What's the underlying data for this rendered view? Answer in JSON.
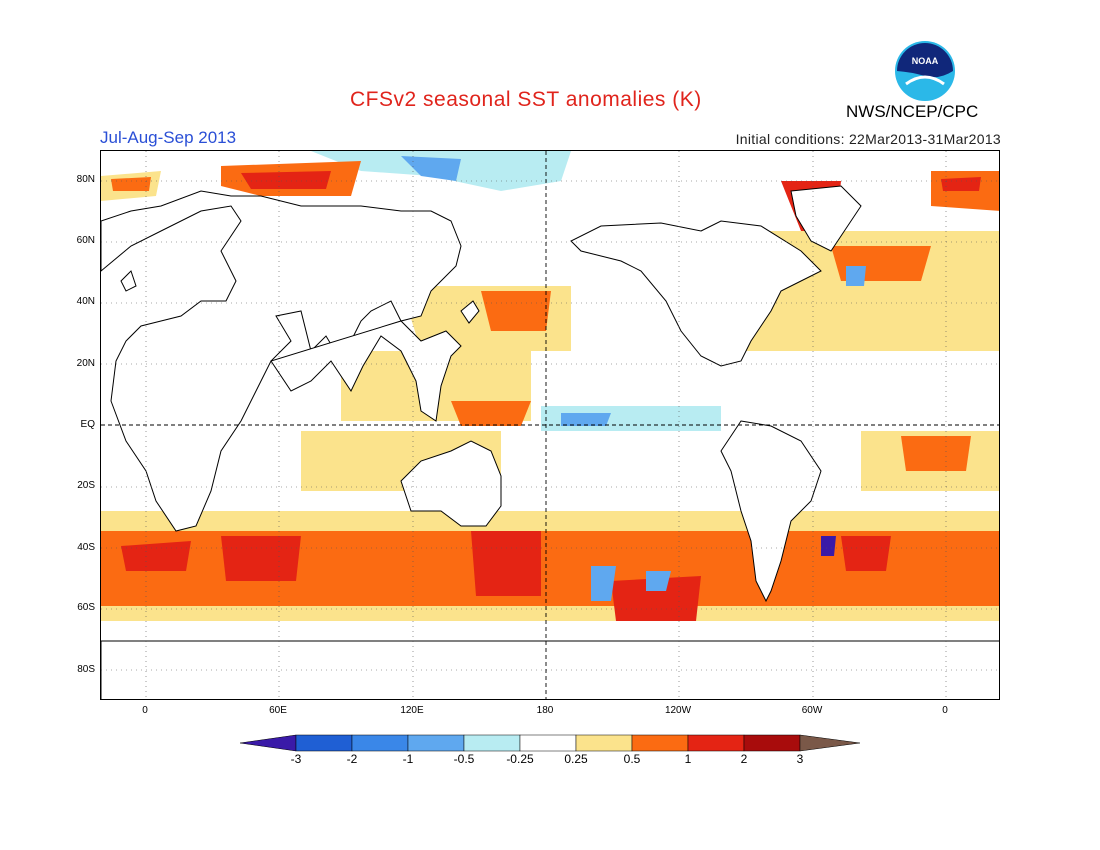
{
  "header": {
    "title": "CFSv2 seasonal SST anomalies (K)",
    "season": "Jul-Aug-Sep 2013",
    "initial_conditions": "Initial conditions: 22Mar2013-31Mar2013",
    "agency": "NWS/NCEP/CPC",
    "logo_text": "NOAA"
  },
  "axes": {
    "lat_labels": [
      "80N",
      "60N",
      "40N",
      "20N",
      "EQ",
      "20S",
      "40S",
      "60S",
      "80S"
    ],
    "lon_labels": [
      "0",
      "60E",
      "120E",
      "180",
      "120W",
      "60W",
      "0"
    ]
  },
  "colorbar": {
    "labels": [
      "-3",
      "-2",
      "-1",
      "-0.5",
      "-0.25",
      "0.25",
      "0.5",
      "1",
      "2",
      "3"
    ],
    "colors": [
      "#3a1aa8",
      "#1f5fd4",
      "#3a87e8",
      "#5fa8ef",
      "#b8ecf2",
      "#ffffff",
      "#fbe38c",
      "#fb6b12",
      "#e42414",
      "#a80c0c",
      "#7a5848"
    ]
  },
  "anomalies": [
    {
      "region": "Arctic Barents",
      "level": "strong-positive"
    },
    {
      "region": "Southern Ocean",
      "level": "positive"
    },
    {
      "region": "Equatorial Pacific",
      "level": "weak-negative"
    },
    {
      "region": "Arctic north of Siberia",
      "level": "weak-negative"
    }
  ]
}
